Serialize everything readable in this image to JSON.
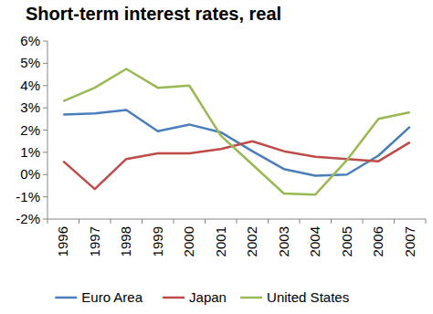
{
  "chart_data": {
    "type": "line",
    "title": "Short-term interest rates, real",
    "categories": [
      "1996",
      "1997",
      "1998",
      "1999",
      "2000",
      "2001",
      "2002",
      "2003",
      "2004",
      "2005",
      "2006",
      "2007"
    ],
    "series": [
      {
        "name": "Euro Area",
        "color": "#4a7ebb",
        "values": [
          2.7,
          2.75,
          2.9,
          1.95,
          2.25,
          1.9,
          1.05,
          0.25,
          -0.05,
          0.0,
          0.85,
          2.15
        ]
      },
      {
        "name": "Japan",
        "color": "#be4b48",
        "values": [
          0.6,
          -0.65,
          0.7,
          0.95,
          0.95,
          1.15,
          1.5,
          1.05,
          0.8,
          0.7,
          0.6,
          1.45
        ]
      },
      {
        "name": "United States",
        "color": "#98b954",
        "values": [
          3.3,
          3.9,
          4.75,
          3.9,
          4.0,
          1.75,
          0.45,
          -0.85,
          -0.9,
          0.65,
          2.5,
          2.8
        ]
      }
    ],
    "ylim": [
      -2,
      6
    ],
    "yticks": [
      {
        "value": -2,
        "label": "-2%"
      },
      {
        "value": -1,
        "label": "-1%"
      },
      {
        "value": 0,
        "label": "0%"
      },
      {
        "value": 1,
        "label": "1%"
      },
      {
        "value": 2,
        "label": "2%"
      },
      {
        "value": 3,
        "label": "3%"
      },
      {
        "value": 4,
        "label": "4%"
      },
      {
        "value": 5,
        "label": "5%"
      },
      {
        "value": 6,
        "label": "6%"
      }
    ],
    "grid": false,
    "legend": "bottom"
  }
}
